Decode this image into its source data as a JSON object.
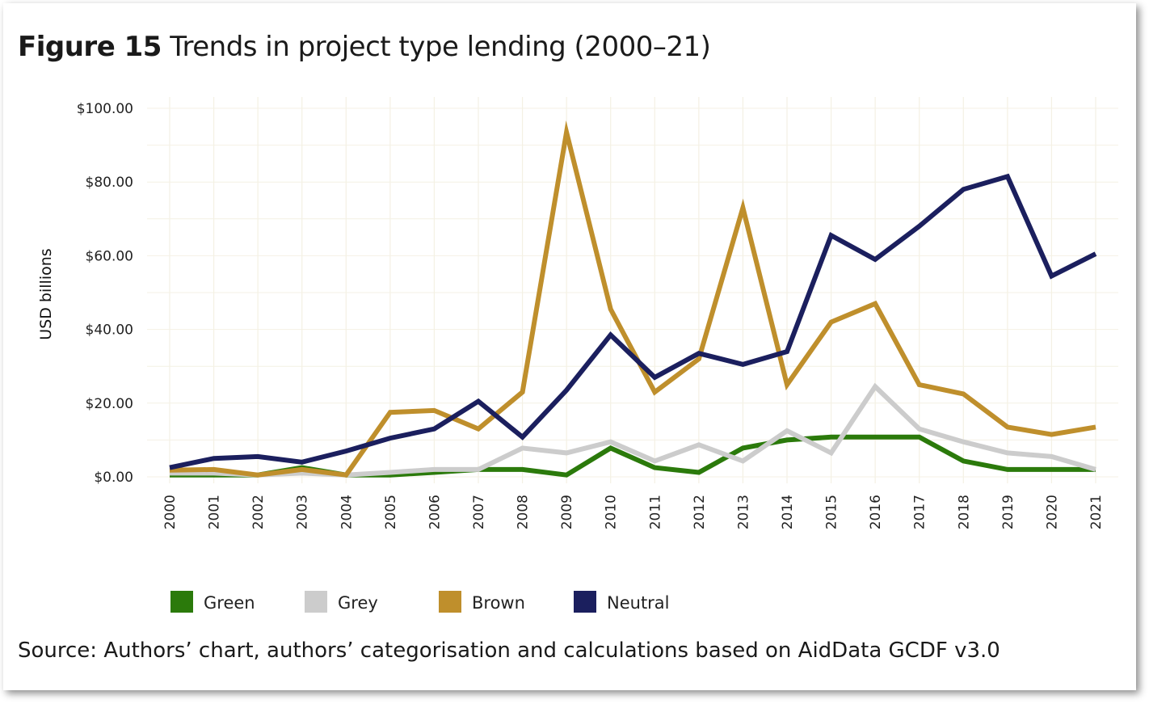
{
  "title": {
    "figure_label": "Figure 15",
    "text": "Trends in project type lending (2000–21)"
  },
  "source": "Source: Authors’ chart, authors’ categorisation and calculations based on AidData GCDF v3.0",
  "chart_data": {
    "type": "line",
    "x": [
      "2000",
      "2001",
      "2002",
      "2003",
      "2004",
      "2005",
      "2006",
      "2007",
      "2008",
      "2009",
      "2010",
      "2011",
      "2012",
      "2013",
      "2014",
      "2015",
      "2016",
      "2017",
      "2018",
      "2019",
      "2020",
      "2021"
    ],
    "ylabel": "USD billions",
    "ylim": [
      0,
      100
    ],
    "yticks": [
      0,
      20,
      40,
      60,
      80,
      100
    ],
    "ytick_labels": [
      "$0.00",
      "$20.00",
      "$40.00",
      "$60.00",
      "$80.00",
      "$100.00"
    ],
    "grid": true,
    "legend_position": "bottom",
    "series": [
      {
        "name": "Green",
        "color": "#2b7a0b",
        "values": [
          0.5,
          0.5,
          0.5,
          2.5,
          0.5,
          0.5,
          1.2,
          2.0,
          2.0,
          0.5,
          7.8,
          2.5,
          1.2,
          7.8,
          10.0,
          10.8,
          10.8,
          10.8,
          4.3,
          2.0,
          2.0,
          2.0
        ]
      },
      {
        "name": "Grey",
        "color": "#cccccc",
        "values": [
          1.0,
          1.0,
          0.5,
          1.0,
          0.5,
          1.2,
          2.0,
          2.0,
          7.8,
          6.5,
          9.5,
          4.3,
          8.7,
          4.3,
          12.5,
          6.5,
          24.5,
          13.0,
          9.5,
          6.5,
          5.5,
          2.0
        ]
      },
      {
        "name": "Brown",
        "color": "#bf8f2c",
        "values": [
          1.8,
          2.0,
          0.5,
          2.0,
          0.5,
          17.5,
          18.0,
          13.0,
          23.0,
          93.5,
          45.5,
          23.0,
          32.0,
          73.0,
          25.0,
          42.0,
          47.0,
          25.0,
          22.5,
          13.5,
          11.5,
          13.5
        ]
      },
      {
        "name": "Neutral",
        "color": "#1b1f5e",
        "values": [
          2.5,
          5.0,
          5.5,
          4.0,
          7.0,
          10.5,
          13.0,
          20.5,
          10.8,
          23.5,
          38.5,
          27.0,
          33.5,
          30.5,
          34.0,
          65.5,
          59.0,
          68.0,
          78.0,
          81.5,
          54.5,
          60.5
        ]
      }
    ]
  }
}
